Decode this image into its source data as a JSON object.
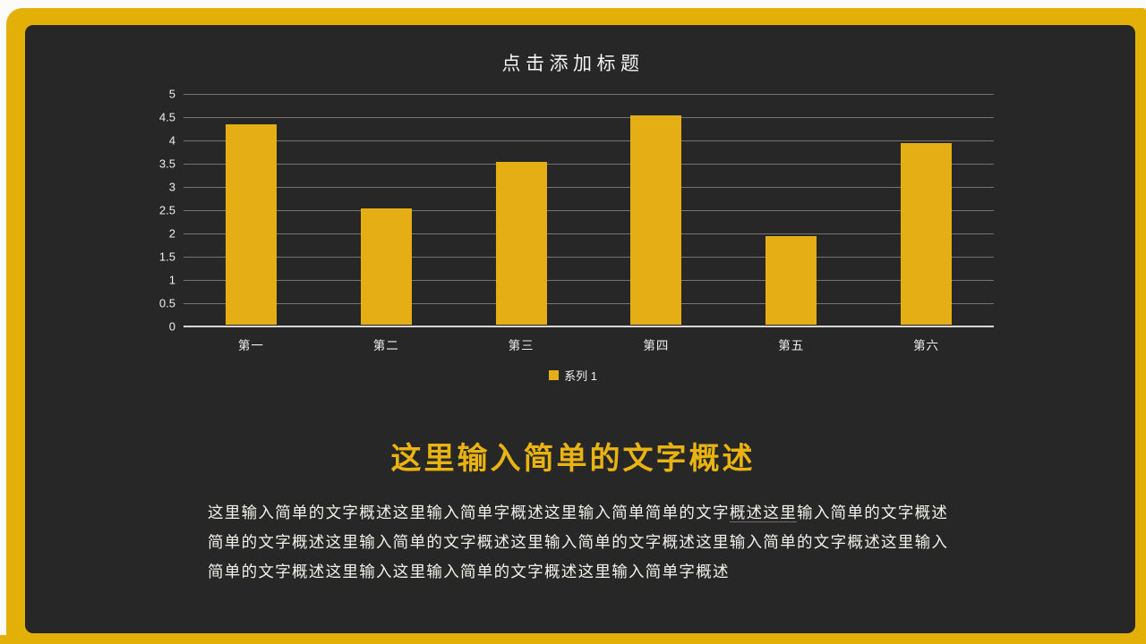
{
  "slide": {
    "chart_title": "点击添加标题",
    "heading": "这里输入简单的文字概述",
    "body": {
      "line1_pre": "这里输入简单的文字概述这里输入简单字概述这里输入简单简单的文字",
      "line1_underlined": "概述这里",
      "line1_post": "输入简单的文字概述",
      "line2": "简单的文字概述这里输入简单的文字概述这里输入简单的文字概述这里输入简单的文字概述这里输入",
      "line3": "简单的文字概述这里输入这里输入简单的文字概述这里输入简单字概述"
    }
  },
  "chart_data": {
    "type": "bar",
    "title": "点击添加标题",
    "categories": [
      "第一",
      "第二",
      "第三",
      "第四",
      "第五",
      "第六"
    ],
    "series": [
      {
        "name": "系列 1",
        "color": "#E5AE15",
        "values": [
          4.3,
          2.5,
          3.5,
          4.5,
          1.9,
          3.9
        ]
      }
    ],
    "xlabel": "",
    "ylabel": "",
    "ylim": [
      0,
      5
    ],
    "ytick_step": 0.5,
    "yticks": [
      "5",
      "4.5",
      "4",
      "3.5",
      "3",
      "2.5",
      "2",
      "1.5",
      "1",
      "0.5",
      "0"
    ],
    "grid": true,
    "legend_position": "bottom"
  },
  "colors": {
    "frame": "#E3B008",
    "slide_bg": "#272727",
    "bar": "#E5AE15",
    "heading": "#E9B412",
    "title_text": "#F4F4F4",
    "axis_text": "#F0F0F0",
    "text": "#F2F0EA",
    "gridline": "#757575",
    "baseline": "#D8D8D8"
  }
}
